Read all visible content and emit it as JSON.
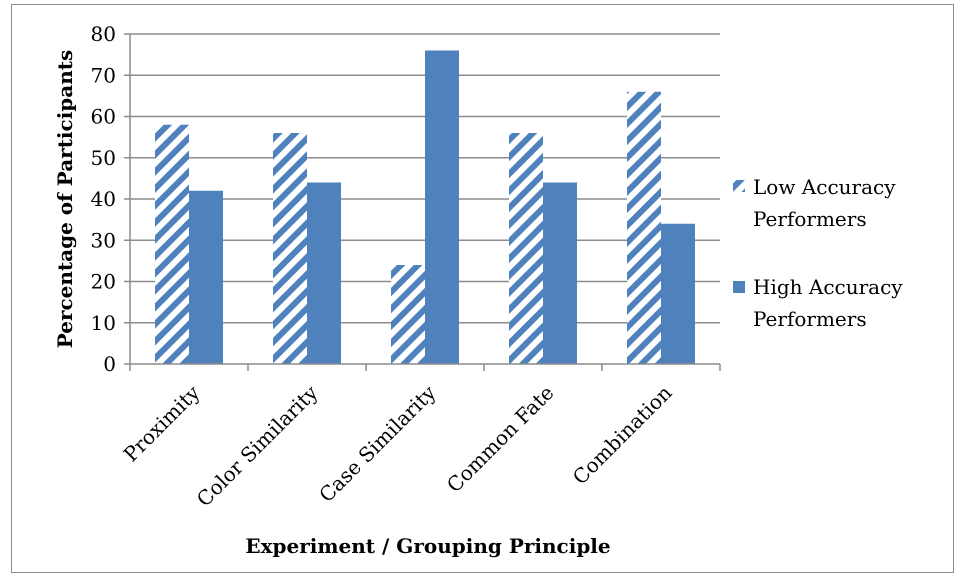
{
  "chart_data": {
    "type": "bar",
    "title": "",
    "xlabel": "Experiment / Grouping Principle",
    "ylabel": "Percentage of Participants",
    "categories": [
      "Proximity",
      "Color Similarity",
      "Case Similarity",
      "Common Fate",
      "Combination"
    ],
    "series": [
      {
        "name": "Low Accuracy Performers",
        "values": [
          58,
          56,
          24,
          56,
          66
        ],
        "color": "#4f81bd",
        "pattern": "diagonal-stripes"
      },
      {
        "name": "High Accuracy Performers",
        "values": [
          42,
          44,
          76,
          44,
          34
        ],
        "color": "#4f81bd",
        "pattern": "solid"
      }
    ],
    "ylim": [
      0,
      80
    ],
    "yticks": [
      0,
      10,
      20,
      30,
      40,
      50,
      60,
      70,
      80
    ],
    "grid": true,
    "legend_position": "right"
  }
}
